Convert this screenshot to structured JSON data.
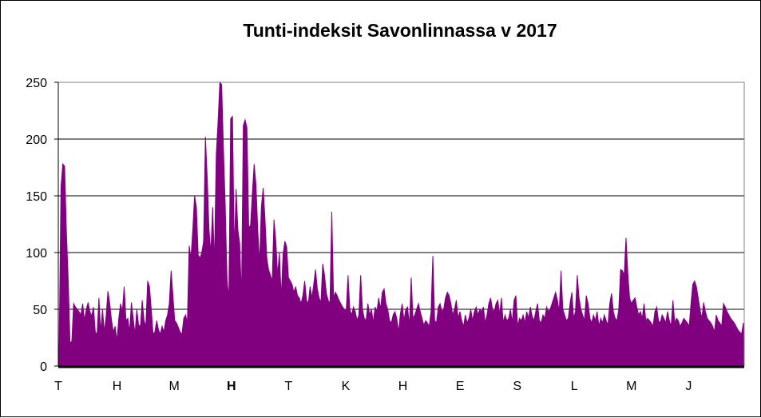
{
  "chart_data": {
    "type": "area",
    "title": "Tunti-indeksit Savonlinnassa v 2017",
    "xlabel": "",
    "ylabel": "",
    "ylim": [
      0,
      250
    ],
    "yticks": [
      0,
      50,
      100,
      150,
      200,
      250
    ],
    "month_labels": [
      "T",
      "H",
      "M",
      "H",
      "T",
      "K",
      "H",
      "E",
      "S",
      "L",
      "M",
      "J"
    ],
    "bold_month_index": 3,
    "grid": "horizontal",
    "series_color": "#800080",
    "series": [
      {
        "values": [
          20,
          158,
          178,
          176,
          118,
          76,
          20,
          22,
          55,
          52,
          50,
          48,
          45,
          55,
          40,
          50,
          56,
          48,
          44,
          52,
          30,
          28,
          60,
          30,
          50,
          30,
          44,
          66,
          55,
          40,
          30,
          35,
          22,
          42,
          55,
          48,
          70,
          40,
          42,
          30,
          56,
          42,
          28,
          50,
          36,
          35,
          58,
          40,
          35,
          75,
          70,
          50,
          28,
          30,
          40,
          32,
          28,
          35,
          30,
          40,
          45,
          55,
          84,
          62,
          40,
          38,
          34,
          30,
          28,
          42,
          45,
          38,
          106,
          95,
          120,
          150,
          140,
          98,
          95,
          100,
          110,
          202,
          166,
          120,
          100,
          140,
          90,
          186,
          215,
          250,
          248,
          190,
          140,
          75,
          60,
          218,
          220,
          100,
          156,
          120,
          108,
          60,
          212,
          217,
          210,
          122,
          124,
          152,
          178,
          160,
          120,
          90,
          140,
          157,
          130,
          95,
          85,
          80,
          75,
          129,
          110,
          80,
          100,
          60,
          98,
          110,
          105,
          78,
          75,
          72,
          65,
          70,
          62,
          60,
          55,
          62,
          75,
          58,
          55,
          70,
          60,
          72,
          85,
          68,
          60,
          56,
          90,
          80,
          64,
          58,
          55,
          136,
          60,
          65,
          62,
          58,
          55,
          52,
          50,
          48,
          80,
          50,
          45,
          52,
          48,
          40,
          45,
          80,
          50,
          42,
          40,
          55,
          45,
          50,
          38,
          52,
          48,
          60,
          50,
          65,
          68,
          55,
          50,
          40,
          38,
          45,
          48,
          42,
          30,
          46,
          55,
          40,
          50,
          52,
          35,
          78,
          42,
          45,
          50,
          55,
          48,
          42,
          36,
          40,
          38,
          35,
          48,
          97,
          40,
          38,
          52,
          55,
          48,
          50,
          60,
          65,
          62,
          55,
          45,
          50,
          58,
          42,
          48,
          40,
          35,
          45,
          38,
          42,
          50,
          40,
          48,
          52,
          45,
          50,
          48,
          52,
          38,
          45,
          55,
          60,
          50,
          48,
          55,
          58,
          45,
          60,
          38,
          45,
          40,
          42,
          50,
          38,
          58,
          62,
          35,
          42,
          40,
          45,
          38,
          48,
          42,
          52,
          44,
          40,
          48,
          55,
          40,
          38,
          45,
          42,
          52,
          48,
          50,
          55,
          60,
          65,
          58,
          48,
          84,
          50,
          45,
          40,
          42,
          55,
          65,
          42,
          48,
          80,
          60,
          50,
          45,
          40,
          62,
          55,
          42,
          38,
          45,
          40,
          48,
          35,
          42,
          38,
          45,
          40,
          36,
          55,
          64,
          48,
          42,
          40,
          50,
          85,
          84,
          80,
          113,
          82,
          60,
          55,
          58,
          60,
          52,
          45,
          48,
          42,
          55,
          40,
          42,
          40,
          38,
          35,
          48,
          52,
          40,
          38,
          45,
          42,
          38,
          48,
          40,
          35,
          58,
          38,
          42,
          40,
          35,
          38,
          42,
          40,
          38,
          35,
          55,
          72,
          75,
          70,
          60,
          50,
          42,
          56,
          48,
          42,
          40,
          38,
          35,
          30,
          45,
          40,
          38,
          35,
          55,
          52,
          48,
          45,
          42,
          40,
          38,
          35,
          32,
          30,
          28,
          38
        ]
      }
    ]
  }
}
